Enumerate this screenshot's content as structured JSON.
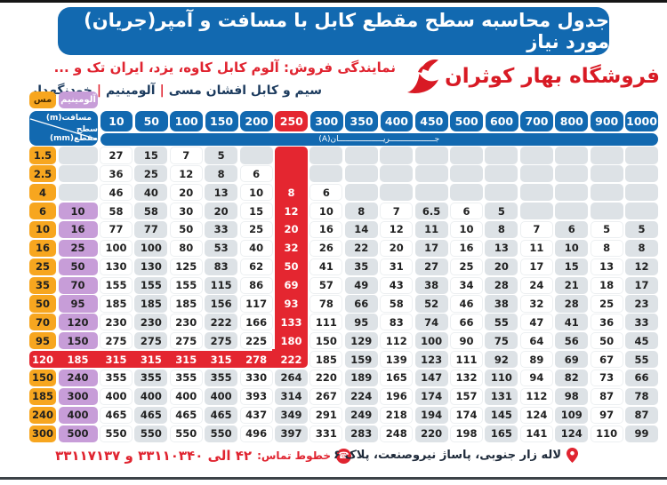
{
  "header": {
    "title": "جدول محاسبه سطح مقطع کابل با مسافت و آمپر(جریان) مورد نیاز",
    "store_name": "فروشگاه بهار کوثران",
    "dealer_line": "نمایندگی فروش: آلوم کابل کاوه، یزد، ایران تک و ...",
    "products_parts": [
      "سیم و کابل افشان مسی",
      "آلومینیم",
      "خودنگهدار"
    ],
    "products_separator": "|"
  },
  "legend": {
    "copper": "مس",
    "aluminum": "آلومینیم"
  },
  "table": {
    "corner_top": "مسافت(m)",
    "corner_bottom": "سطح مقطع(mm)",
    "current_band": "جـــــــــــــــــــریـــــــــــــــــــان(A)",
    "columns": [
      "10",
      "50",
      "100",
      "150",
      "200",
      "250",
      "300",
      "350",
      "400",
      "450",
      "500",
      "600",
      "700",
      "800",
      "900",
      "1000"
    ],
    "red_col_index": 5,
    "red_row_index": 11,
    "rows": [
      {
        "copper": "1.5",
        "alum": "",
        "values": [
          "27",
          "15",
          "7",
          "5",
          "",
          "",
          "",
          "",
          "",
          "",
          "",
          "",
          "",
          "",
          "",
          ""
        ]
      },
      {
        "copper": "2.5",
        "alum": "",
        "values": [
          "36",
          "25",
          "12",
          "8",
          "6",
          "",
          "",
          "",
          "",
          "",
          "",
          "",
          "",
          "",
          "",
          ""
        ]
      },
      {
        "copper": "4",
        "alum": "",
        "values": [
          "46",
          "40",
          "20",
          "13",
          "10",
          "8",
          "6",
          "",
          "",
          "",
          "",
          "",
          "",
          "",
          "",
          ""
        ]
      },
      {
        "copper": "6",
        "alum": "10",
        "values": [
          "58",
          "58",
          "30",
          "20",
          "15",
          "12",
          "10",
          "8",
          "7",
          "6.5",
          "6",
          "5",
          "",
          "",
          "",
          ""
        ]
      },
      {
        "copper": "10",
        "alum": "16",
        "values": [
          "77",
          "77",
          "50",
          "33",
          "25",
          "20",
          "16",
          "14",
          "12",
          "11",
          "10",
          "8",
          "7",
          "6",
          "5",
          "5"
        ]
      },
      {
        "copper": "16",
        "alum": "25",
        "values": [
          "100",
          "100",
          "80",
          "53",
          "40",
          "32",
          "26",
          "22",
          "20",
          "17",
          "16",
          "13",
          "11",
          "10",
          "8",
          "8"
        ]
      },
      {
        "copper": "25",
        "alum": "50",
        "values": [
          "130",
          "130",
          "125",
          "83",
          "62",
          "50",
          "41",
          "35",
          "31",
          "27",
          "25",
          "20",
          "17",
          "15",
          "13",
          "12"
        ]
      },
      {
        "copper": "35",
        "alum": "70",
        "values": [
          "155",
          "155",
          "155",
          "115",
          "86",
          "69",
          "57",
          "49",
          "43",
          "38",
          "34",
          "28",
          "24",
          "21",
          "18",
          "17"
        ]
      },
      {
        "copper": "50",
        "alum": "95",
        "values": [
          "185",
          "185",
          "185",
          "156",
          "117",
          "93",
          "78",
          "66",
          "58",
          "52",
          "46",
          "38",
          "32",
          "28",
          "25",
          "23"
        ]
      },
      {
        "copper": "70",
        "alum": "120",
        "values": [
          "230",
          "230",
          "230",
          "222",
          "166",
          "133",
          "111",
          "95",
          "83",
          "74",
          "66",
          "55",
          "47",
          "41",
          "36",
          "33"
        ]
      },
      {
        "copper": "95",
        "alum": "150",
        "values": [
          "275",
          "275",
          "275",
          "275",
          "225",
          "180",
          "150",
          "129",
          "112",
          "100",
          "90",
          "75",
          "64",
          "56",
          "50",
          "45"
        ]
      },
      {
        "copper": "120",
        "alum": "185",
        "values": [
          "315",
          "315",
          "315",
          "315",
          "278",
          "222",
          "185",
          "159",
          "139",
          "123",
          "111",
          "92",
          "89",
          "69",
          "67",
          "55"
        ]
      },
      {
        "copper": "150",
        "alum": "240",
        "values": [
          "355",
          "355",
          "355",
          "355",
          "330",
          "264",
          "220",
          "189",
          "165",
          "147",
          "132",
          "110",
          "94",
          "82",
          "73",
          "66"
        ]
      },
      {
        "copper": "185",
        "alum": "300",
        "values": [
          "400",
          "400",
          "400",
          "400",
          "393",
          "314",
          "267",
          "224",
          "196",
          "174",
          "157",
          "131",
          "112",
          "98",
          "87",
          "78"
        ]
      },
      {
        "copper": "240",
        "alum": "400",
        "values": [
          "465",
          "465",
          "465",
          "465",
          "437",
          "349",
          "291",
          "249",
          "218",
          "194",
          "174",
          "145",
          "124",
          "109",
          "97",
          "87"
        ]
      },
      {
        "copper": "300",
        "alum": "500",
        "values": [
          "550",
          "550",
          "550",
          "550",
          "496",
          "397",
          "331",
          "283",
          "248",
          "220",
          "198",
          "165",
          "141",
          "124",
          "110",
          "99"
        ]
      }
    ]
  },
  "footer": {
    "contact_label": "خطوط تماس:",
    "contact_numbers": "۴۲ الی ۳۳۱۱۰۳۴۰ و ۳۳۱۱۷۱۳۷",
    "address": "لاله زار جنوبی، پاساژ نیروصنعت، پلاک ۶",
    "phone_glyph": "☎"
  },
  "colors": {
    "blue": "#1269b0",
    "red": "#e42630",
    "orange": "#f7a61f",
    "purple": "#c79dd8",
    "cell_gray": "#dde2e6",
    "navy": "#1c3b5e"
  }
}
